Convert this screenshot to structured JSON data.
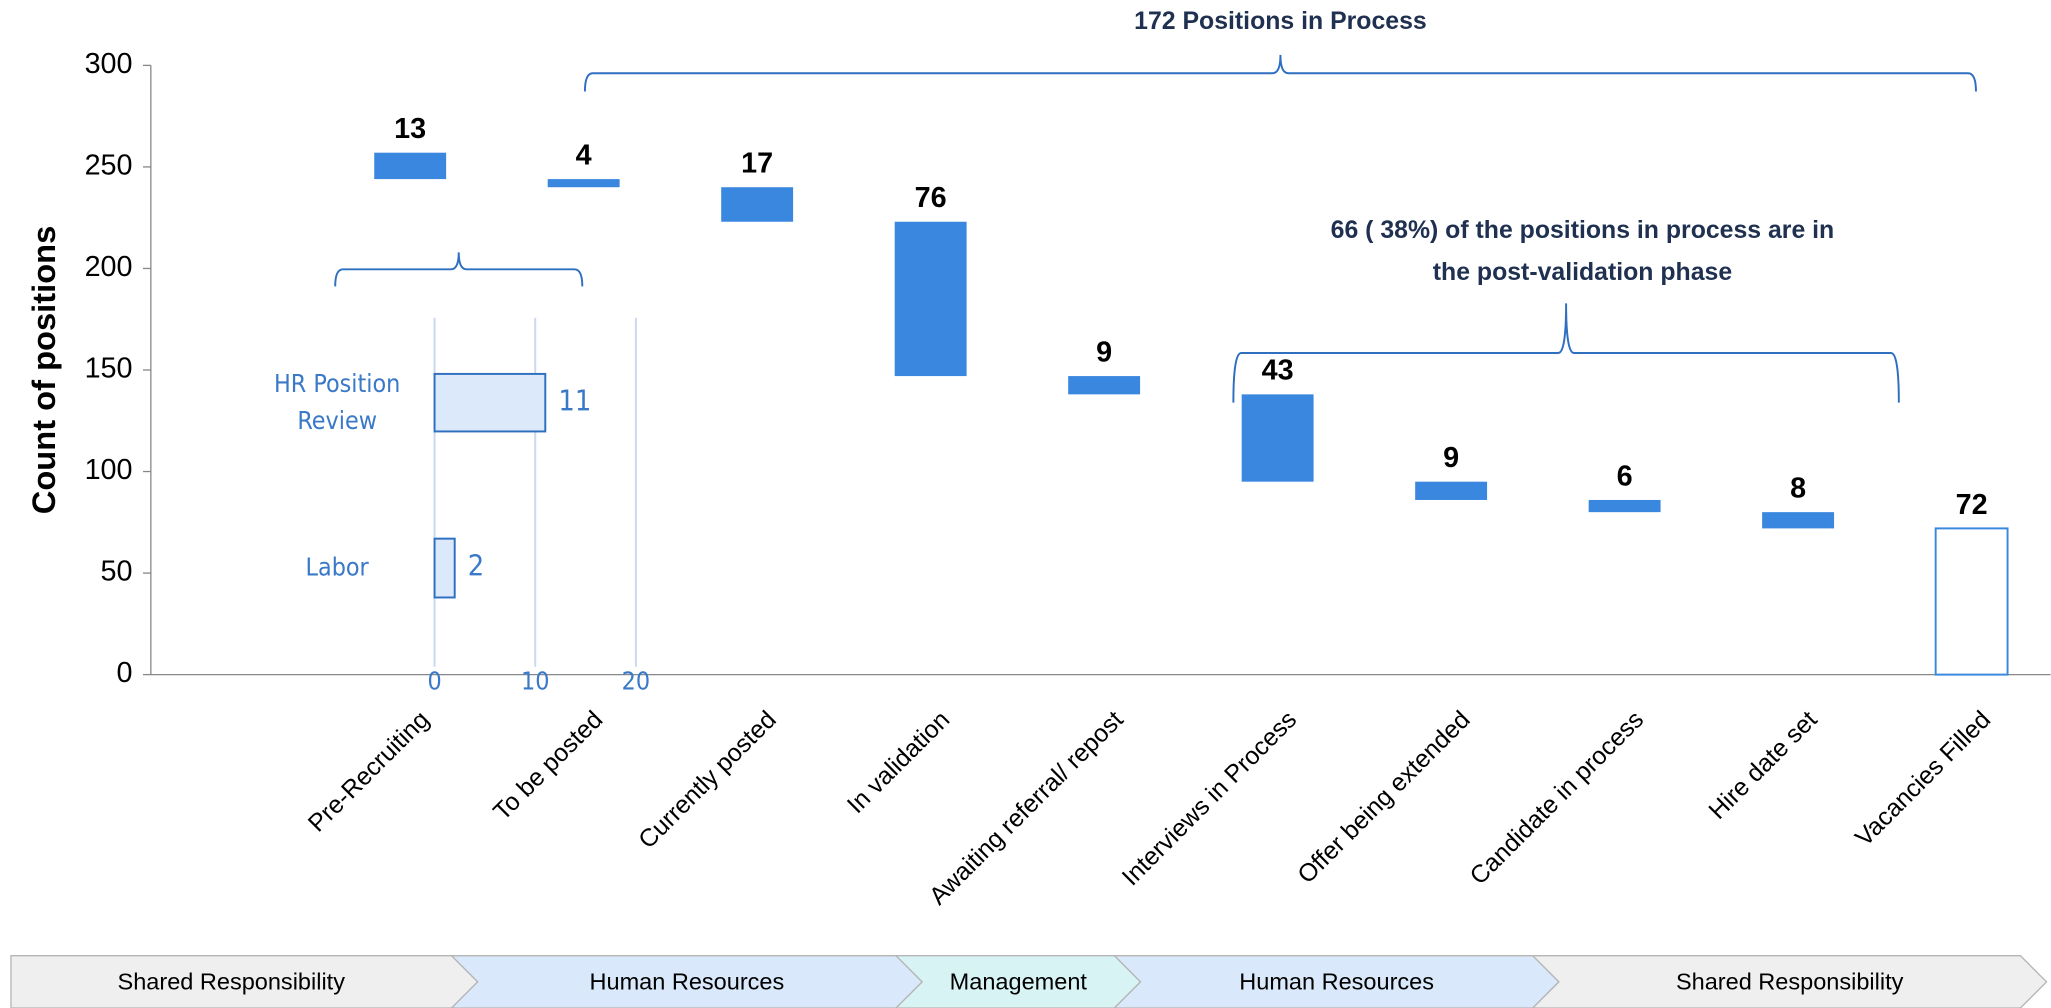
{
  "chart_data": [
    {
      "type": "waterfall",
      "y_label": "Count of positions",
      "categories": [
        "Pre-Recruiting",
        "To be posted",
        "Currently posted",
        "In validation",
        "Awaiting referral/ repost",
        "Interviews in Process",
        "Offer being extended",
        "Candidate in process",
        "Hire date set",
        "Vacancies Filled"
      ],
      "values": [
        13,
        4,
        17,
        76,
        9,
        43,
        9,
        6,
        8,
        72
      ],
      "color": "#3a87e0",
      "ylim": [
        0,
        300
      ],
      "yticks": [
        0,
        50,
        100,
        150,
        200,
        250,
        300
      ],
      "annotations": [
        {
          "lines": [
            "172 Positions in Process"
          ]
        },
        {
          "lines": [
            "66 ( 38%) of the positions in process are in",
            "the post-validation phase"
          ]
        }
      ]
    },
    {
      "type": "hbar",
      "categories": [
        "HR Position Review",
        "Labor"
      ],
      "values": [
        11,
        2
      ],
      "color": "#dbe9fb",
      "edge_color": "#2f6fc0",
      "xlim": [
        0,
        20
      ],
      "xticks": [
        0,
        10,
        20
      ],
      "grid": true
    }
  ],
  "phases": [
    "Shared Responsibility",
    "Human Resources",
    "Management",
    "Human Resources",
    "Shared Responsibility"
  ]
}
